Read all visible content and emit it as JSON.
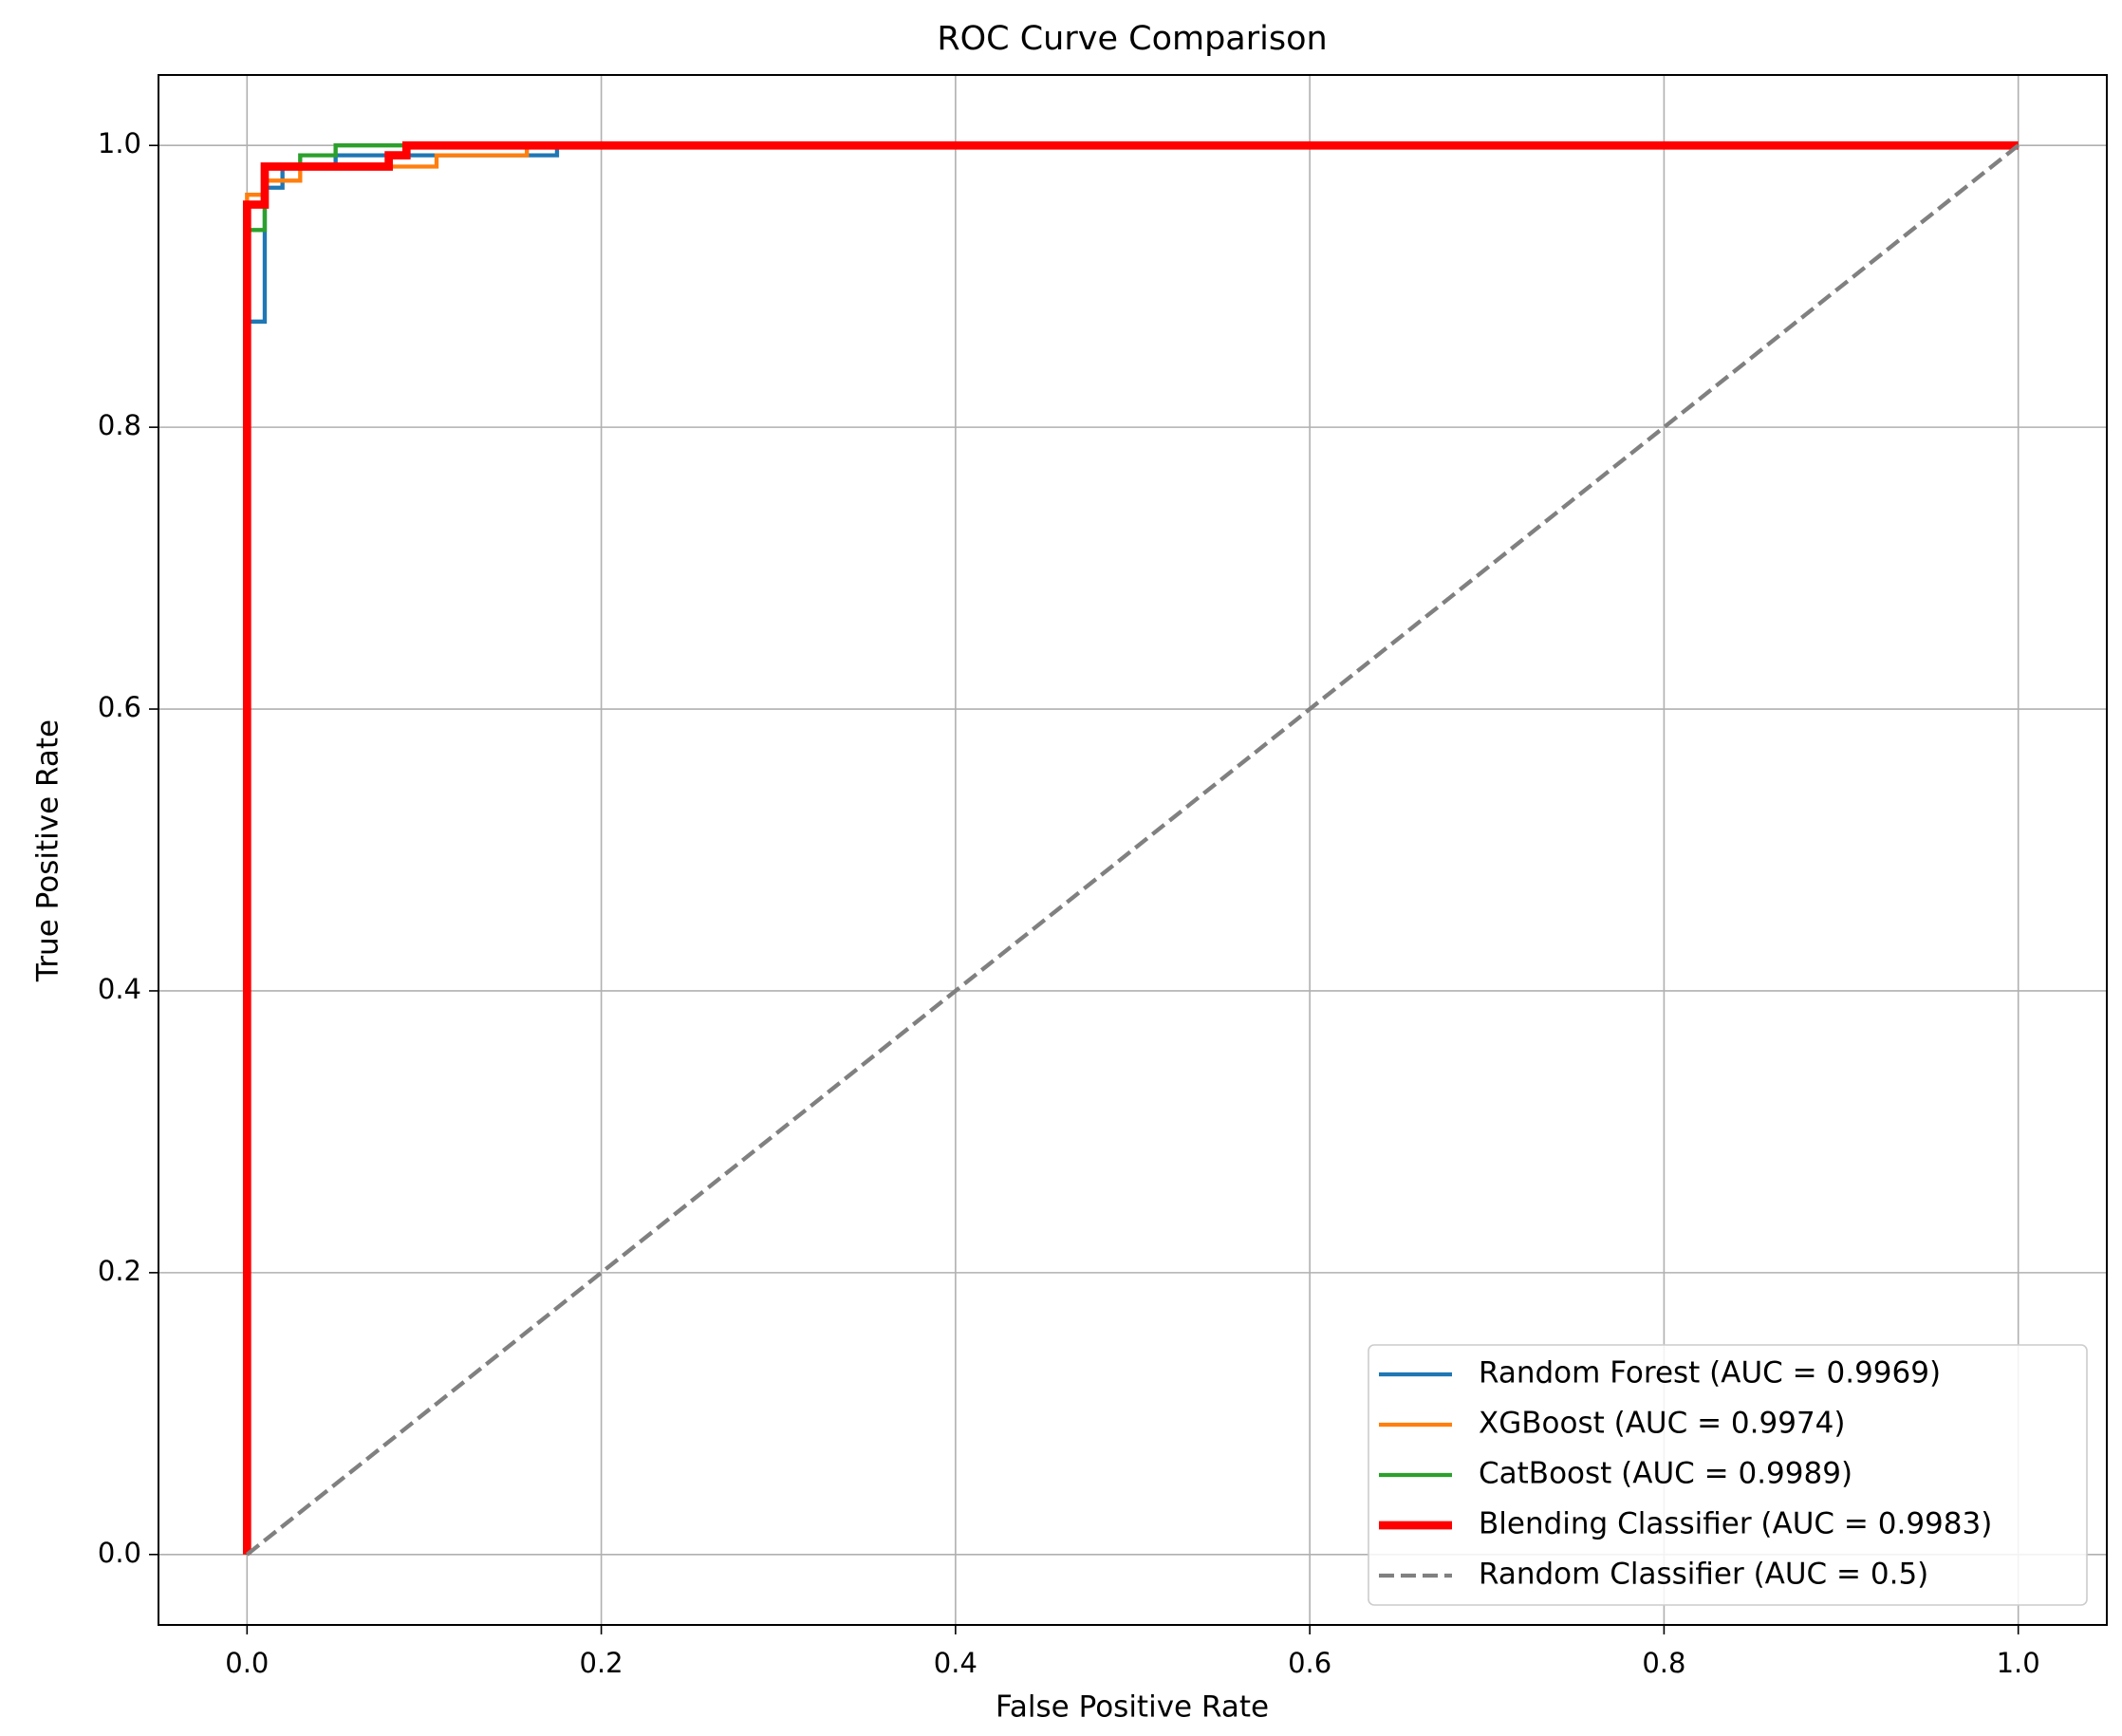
{
  "chart_data": {
    "type": "line",
    "title": "ROC Curve Comparison",
    "x_label": "False Positive Rate",
    "y_label": "True Positive Rate",
    "xlim": [
      -0.05,
      1.05
    ],
    "ylim": [
      -0.05,
      1.05
    ],
    "xticks": [
      {
        "value": 0,
        "label": "0.0"
      },
      {
        "value": 0.2,
        "label": "0.2"
      },
      {
        "value": 0.4,
        "label": "0.4"
      },
      {
        "value": 0.6,
        "label": "0.6"
      },
      {
        "value": 0.8,
        "label": "0.8"
      },
      {
        "value": 1,
        "label": "1.0"
      }
    ],
    "yticks": [
      {
        "value": 0,
        "label": "0.0"
      },
      {
        "value": 0.2,
        "label": "0.2"
      },
      {
        "value": 0.4,
        "label": "0.4"
      },
      {
        "value": 0.6,
        "label": "0.6"
      },
      {
        "value": 0.8,
        "label": "0.8"
      },
      {
        "value": 1,
        "label": "1.0"
      }
    ],
    "grid": true,
    "legend": "lower right",
    "series": [
      {
        "name": "Random Forest (AUC = 0.9969)",
        "color": "#1f77b4",
        "linewidth": 1.5,
        "linestyle": "solid",
        "x": [
          0,
          0,
          0.01,
          0.01,
          0.02,
          0.02,
          0.05,
          0.05,
          0.175,
          0.175,
          1
        ],
        "values": [
          0,
          0.875,
          0.875,
          0.97,
          0.97,
          0.985,
          0.985,
          0.993,
          0.993,
          1,
          1
        ]
      },
      {
        "name": "XGBoost (AUC = 0.9974)",
        "color": "#ff7f0e",
        "linewidth": 1.5,
        "linestyle": "solid",
        "x": [
          0,
          0,
          0.01,
          0.01,
          0.03,
          0.03,
          0.107,
          0.107,
          0.158,
          0.158,
          1
        ],
        "values": [
          0,
          0.965,
          0.965,
          0.975,
          0.975,
          0.985,
          0.985,
          0.993,
          0.993,
          1,
          1
        ]
      },
      {
        "name": "CatBoost (AUC = 0.9989)",
        "color": "#2ca02c",
        "linewidth": 1.5,
        "linestyle": "solid",
        "x": [
          0,
          0,
          0.01,
          0.01,
          0.03,
          0.03,
          0.05,
          0.05,
          1
        ],
        "values": [
          0,
          0.94,
          0.94,
          0.985,
          0.985,
          0.993,
          0.993,
          1,
          1
        ]
      },
      {
        "name": "Blending Classifier (AUC = 0.9983)",
        "color": "#ff0000",
        "linewidth": 3,
        "linestyle": "solid",
        "x": [
          0,
          0,
          0.01,
          0.01,
          0.08,
          0.08,
          0.09,
          0.09,
          1
        ],
        "values": [
          0,
          0.958,
          0.958,
          0.985,
          0.985,
          0.993,
          0.993,
          1,
          1
        ]
      },
      {
        "name": "Random Classifier (AUC = 0.5)",
        "color": "#808080",
        "linewidth": 1.5,
        "linestyle": "dashed",
        "x": [
          0,
          1
        ],
        "values": [
          0,
          1
        ]
      }
    ]
  }
}
